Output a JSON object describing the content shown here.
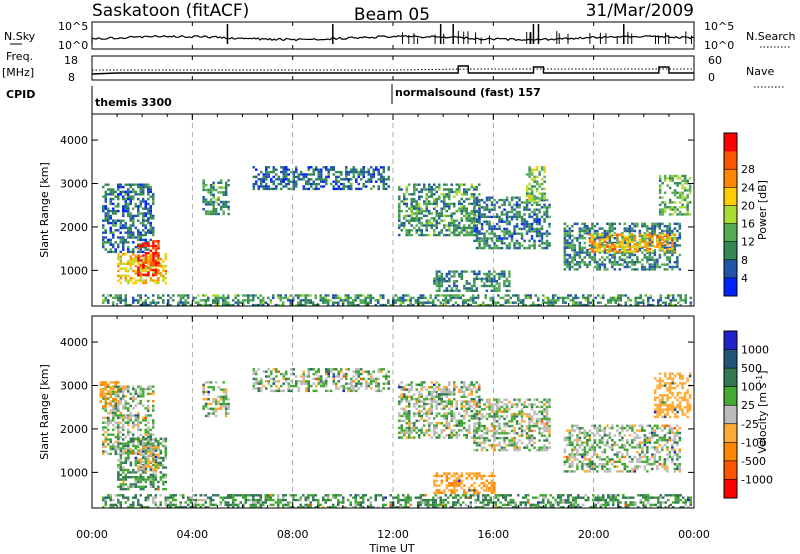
{
  "header": {
    "station": "Saskatoon (fitACF)",
    "beam": "Beam 05",
    "date": "31/Mar/2009"
  },
  "status_panels": {
    "nsky_label": "N.Sky",
    "nsky_ticks": [
      "10^5",
      "10^0"
    ],
    "nsearch_label": "N.Search",
    "freq_label": "Freq.",
    "freq_unit": "[MHz]",
    "freq_ticks": [
      "18",
      "8"
    ],
    "nave_label": "Nave",
    "nave_ticks": [
      "60",
      "0"
    ],
    "cpid_label": "CPID",
    "cpid_segments": [
      {
        "name": "themis 3300",
        "start_hour": 0,
        "end_hour": 12
      },
      {
        "name": "normalsound (fast) 157",
        "start_hour": 12,
        "end_hour": 24
      }
    ]
  },
  "colors": {
    "power": [
      "#0022ff",
      "#2255aa",
      "#338855",
      "#55aa55",
      "#aadd33",
      "#ffcc00",
      "#ff8800",
      "#ff5500",
      "#ff0000"
    ],
    "velocity": [
      "#2222cc",
      "#225577",
      "#337755",
      "#44aa33",
      "#bbbbbb",
      "#ffaa33",
      "#ff8800",
      "#ff5500",
      "#ff0000"
    ]
  },
  "chart_data": [
    {
      "type": "heatmap",
      "panel": "power",
      "ylabel": "Slant Range [km]",
      "yticks": [
        1000,
        2000,
        3000,
        4000
      ],
      "ylim": [
        180,
        4600
      ],
      "colorbar_label": "Power [dB]",
      "colorbar_ticks": [
        "4",
        "8",
        "12",
        "16",
        "20",
        "24",
        "28"
      ],
      "zlim": [
        0,
        32
      ],
      "regions": [
        {
          "t": [
            0.4,
            2.4
          ],
          "r": [
            1400,
            3000
          ],
          "v": 7
        },
        {
          "t": [
            1.0,
            2.9
          ],
          "r": [
            700,
            1400
          ],
          "v": 20
        },
        {
          "t": [
            1.8,
            2.6
          ],
          "r": [
            900,
            1700
          ],
          "v": 29
        },
        {
          "t": [
            4.4,
            5.4
          ],
          "r": [
            2300,
            3100
          ],
          "v": 10
        },
        {
          "t": [
            6.4,
            11.8
          ],
          "r": [
            2900,
            3400
          ],
          "v": 6
        },
        {
          "t": [
            12.2,
            15.4
          ],
          "r": [
            1800,
            3000
          ],
          "v": 10
        },
        {
          "t": [
            13.6,
            16.6
          ],
          "r": [
            550,
            1000
          ],
          "v": 9
        },
        {
          "t": [
            15.2,
            18.2
          ],
          "r": [
            1500,
            2700
          ],
          "v": 8
        },
        {
          "t": [
            17.3,
            18.0
          ],
          "r": [
            2600,
            3400
          ],
          "v": 14
        },
        {
          "t": [
            18.8,
            23.4
          ],
          "r": [
            1000,
            2100
          ],
          "v": 9
        },
        {
          "t": [
            19.8,
            23.2
          ],
          "r": [
            1450,
            1850
          ],
          "v": 21
        },
        {
          "t": [
            22.6,
            23.8
          ],
          "r": [
            2300,
            3200
          ],
          "v": 12
        },
        {
          "t": [
            0.4,
            23.9
          ],
          "r": [
            200,
            450
          ],
          "v": 10
        }
      ]
    },
    {
      "type": "heatmap",
      "panel": "velocity",
      "ylabel": "Slant Range [km]",
      "yticks": [
        1000,
        2000,
        3000,
        4000
      ],
      "ylim": [
        180,
        4600
      ],
      "colorbar_label": "Velocity [m s^-1]",
      "colorbar_ticks": [
        "1000",
        "500",
        "100",
        "25",
        "-25",
        "-100",
        "-500",
        "-1000"
      ],
      "zlim": [
        -1000,
        1000
      ],
      "regions": [
        {
          "t": [
            0.4,
            2.4
          ],
          "r": [
            1400,
            3000
          ],
          "v": 0
        },
        {
          "t": [
            0.3,
            1.0
          ],
          "r": [
            2500,
            3100
          ],
          "v": -300
        },
        {
          "t": [
            1.0,
            2.9
          ],
          "r": [
            600,
            1800
          ],
          "v": 60
        },
        {
          "t": [
            1.8,
            2.6
          ],
          "r": [
            1000,
            1600
          ],
          "v": -80
        },
        {
          "t": [
            4.4,
            5.4
          ],
          "r": [
            2300,
            3100
          ],
          "v": 0
        },
        {
          "t": [
            6.4,
            11.8
          ],
          "r": [
            2900,
            3400
          ],
          "v": 0
        },
        {
          "t": [
            12.2,
            15.4
          ],
          "r": [
            1800,
            3100
          ],
          "v": 0
        },
        {
          "t": [
            13.6,
            16.0
          ],
          "r": [
            550,
            1000
          ],
          "v": -300
        },
        {
          "t": [
            15.2,
            18.2
          ],
          "r": [
            1500,
            2700
          ],
          "v": 0
        },
        {
          "t": [
            18.8,
            23.4
          ],
          "r": [
            1000,
            2100
          ],
          "v": 0
        },
        {
          "t": [
            22.4,
            23.8
          ],
          "r": [
            2300,
            3300
          ],
          "v": -200
        },
        {
          "t": [
            0.4,
            23.9
          ],
          "r": [
            200,
            500
          ],
          "v": 60
        }
      ]
    }
  ],
  "time_axis": {
    "label": "Time UT",
    "ticks": [
      "00:00",
      "04:00",
      "08:00",
      "12:00",
      "16:00",
      "20:00",
      "00:00"
    ],
    "range_hours": [
      0,
      24
    ]
  }
}
